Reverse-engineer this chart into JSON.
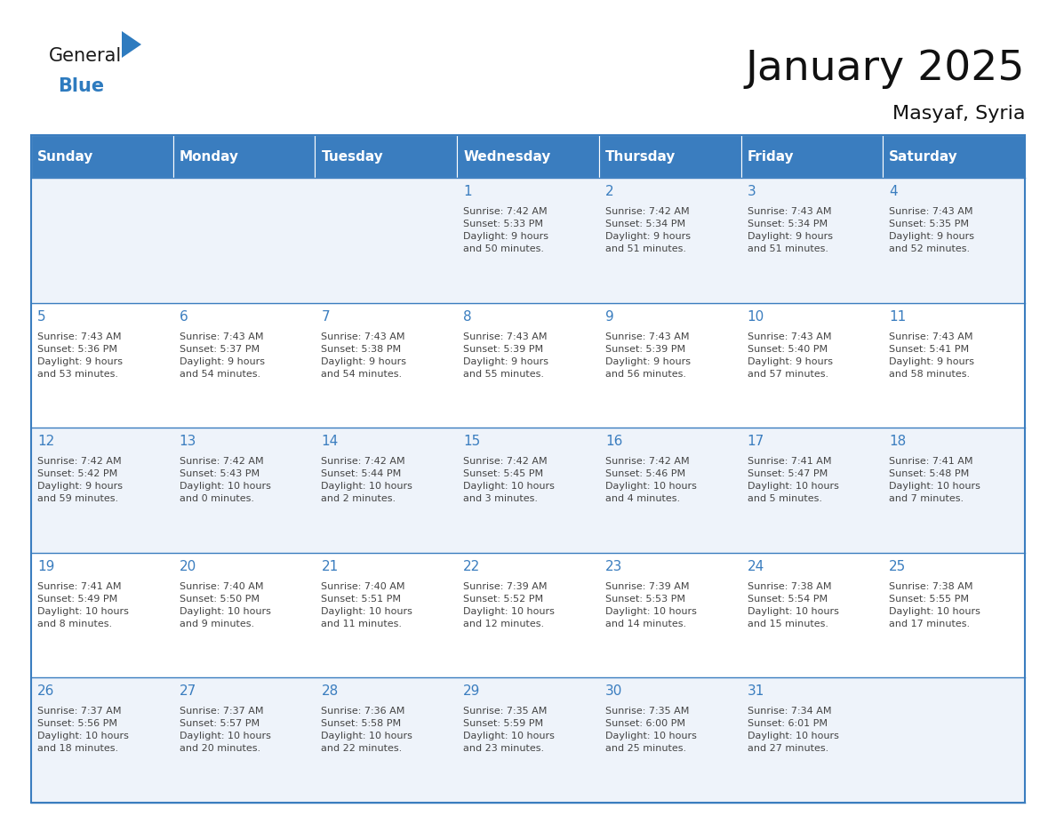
{
  "title": "January 2025",
  "subtitle": "Masyaf, Syria",
  "header_bg": "#3a7dbf",
  "header_text_color": "#FFFFFF",
  "cell_bg_odd": "#eef3fa",
  "cell_bg_even": "#FFFFFF",
  "row_line_color": "#3a7dbf",
  "text_color": "#444444",
  "day_num_color": "#3a7dbf",
  "days_of_week": [
    "Sunday",
    "Monday",
    "Tuesday",
    "Wednesday",
    "Thursday",
    "Friday",
    "Saturday"
  ],
  "calendar_data": [
    [
      {
        "day": "",
        "info": ""
      },
      {
        "day": "",
        "info": ""
      },
      {
        "day": "",
        "info": ""
      },
      {
        "day": "1",
        "info": "Sunrise: 7:42 AM\nSunset: 5:33 PM\nDaylight: 9 hours\nand 50 minutes."
      },
      {
        "day": "2",
        "info": "Sunrise: 7:42 AM\nSunset: 5:34 PM\nDaylight: 9 hours\nand 51 minutes."
      },
      {
        "day": "3",
        "info": "Sunrise: 7:43 AM\nSunset: 5:34 PM\nDaylight: 9 hours\nand 51 minutes."
      },
      {
        "day": "4",
        "info": "Sunrise: 7:43 AM\nSunset: 5:35 PM\nDaylight: 9 hours\nand 52 minutes."
      }
    ],
    [
      {
        "day": "5",
        "info": "Sunrise: 7:43 AM\nSunset: 5:36 PM\nDaylight: 9 hours\nand 53 minutes."
      },
      {
        "day": "6",
        "info": "Sunrise: 7:43 AM\nSunset: 5:37 PM\nDaylight: 9 hours\nand 54 minutes."
      },
      {
        "day": "7",
        "info": "Sunrise: 7:43 AM\nSunset: 5:38 PM\nDaylight: 9 hours\nand 54 minutes."
      },
      {
        "day": "8",
        "info": "Sunrise: 7:43 AM\nSunset: 5:39 PM\nDaylight: 9 hours\nand 55 minutes."
      },
      {
        "day": "9",
        "info": "Sunrise: 7:43 AM\nSunset: 5:39 PM\nDaylight: 9 hours\nand 56 minutes."
      },
      {
        "day": "10",
        "info": "Sunrise: 7:43 AM\nSunset: 5:40 PM\nDaylight: 9 hours\nand 57 minutes."
      },
      {
        "day": "11",
        "info": "Sunrise: 7:43 AM\nSunset: 5:41 PM\nDaylight: 9 hours\nand 58 minutes."
      }
    ],
    [
      {
        "day": "12",
        "info": "Sunrise: 7:42 AM\nSunset: 5:42 PM\nDaylight: 9 hours\nand 59 minutes."
      },
      {
        "day": "13",
        "info": "Sunrise: 7:42 AM\nSunset: 5:43 PM\nDaylight: 10 hours\nand 0 minutes."
      },
      {
        "day": "14",
        "info": "Sunrise: 7:42 AM\nSunset: 5:44 PM\nDaylight: 10 hours\nand 2 minutes."
      },
      {
        "day": "15",
        "info": "Sunrise: 7:42 AM\nSunset: 5:45 PM\nDaylight: 10 hours\nand 3 minutes."
      },
      {
        "day": "16",
        "info": "Sunrise: 7:42 AM\nSunset: 5:46 PM\nDaylight: 10 hours\nand 4 minutes."
      },
      {
        "day": "17",
        "info": "Sunrise: 7:41 AM\nSunset: 5:47 PM\nDaylight: 10 hours\nand 5 minutes."
      },
      {
        "day": "18",
        "info": "Sunrise: 7:41 AM\nSunset: 5:48 PM\nDaylight: 10 hours\nand 7 minutes."
      }
    ],
    [
      {
        "day": "19",
        "info": "Sunrise: 7:41 AM\nSunset: 5:49 PM\nDaylight: 10 hours\nand 8 minutes."
      },
      {
        "day": "20",
        "info": "Sunrise: 7:40 AM\nSunset: 5:50 PM\nDaylight: 10 hours\nand 9 minutes."
      },
      {
        "day": "21",
        "info": "Sunrise: 7:40 AM\nSunset: 5:51 PM\nDaylight: 10 hours\nand 11 minutes."
      },
      {
        "day": "22",
        "info": "Sunrise: 7:39 AM\nSunset: 5:52 PM\nDaylight: 10 hours\nand 12 minutes."
      },
      {
        "day": "23",
        "info": "Sunrise: 7:39 AM\nSunset: 5:53 PM\nDaylight: 10 hours\nand 14 minutes."
      },
      {
        "day": "24",
        "info": "Sunrise: 7:38 AM\nSunset: 5:54 PM\nDaylight: 10 hours\nand 15 minutes."
      },
      {
        "day": "25",
        "info": "Sunrise: 7:38 AM\nSunset: 5:55 PM\nDaylight: 10 hours\nand 17 minutes."
      }
    ],
    [
      {
        "day": "26",
        "info": "Sunrise: 7:37 AM\nSunset: 5:56 PM\nDaylight: 10 hours\nand 18 minutes."
      },
      {
        "day": "27",
        "info": "Sunrise: 7:37 AM\nSunset: 5:57 PM\nDaylight: 10 hours\nand 20 minutes."
      },
      {
        "day": "28",
        "info": "Sunrise: 7:36 AM\nSunset: 5:58 PM\nDaylight: 10 hours\nand 22 minutes."
      },
      {
        "day": "29",
        "info": "Sunrise: 7:35 AM\nSunset: 5:59 PM\nDaylight: 10 hours\nand 23 minutes."
      },
      {
        "day": "30",
        "info": "Sunrise: 7:35 AM\nSunset: 6:00 PM\nDaylight: 10 hours\nand 25 minutes."
      },
      {
        "day": "31",
        "info": "Sunrise: 7:34 AM\nSunset: 6:01 PM\nDaylight: 10 hours\nand 27 minutes."
      },
      {
        "day": "",
        "info": ""
      }
    ]
  ],
  "logo_general_color": "#1a1a1a",
  "logo_blue_color": "#2e7bbf",
  "figsize": [
    11.88,
    9.18
  ],
  "dpi": 100
}
